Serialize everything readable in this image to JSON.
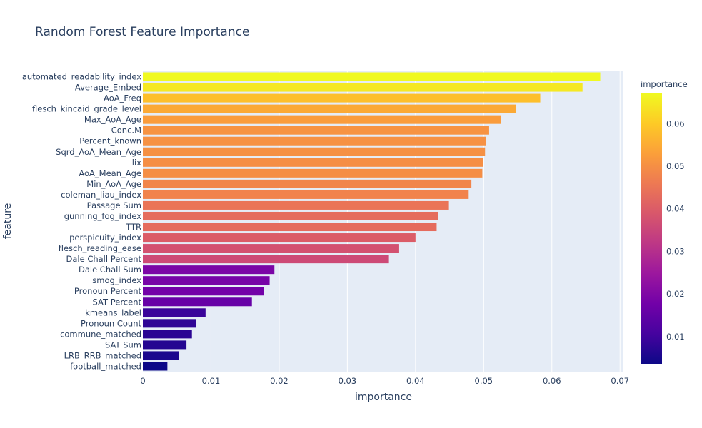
{
  "chart_data": {
    "type": "bar",
    "orientation": "horizontal",
    "title": "Random Forest Feature Importance",
    "xlabel": "importance",
    "ylabel": "feature",
    "xlim": [
      0,
      0.0705
    ],
    "x_ticks": [
      0,
      0.01,
      0.02,
      0.03,
      0.04,
      0.05,
      0.06,
      0.07
    ],
    "x_tick_labels": [
      "0",
      "0.01",
      "0.02",
      "0.03",
      "0.04",
      "0.05",
      "0.06",
      "0.07"
    ],
    "grid": true,
    "colorbar": {
      "title": "importance",
      "range": [
        0.0036,
        0.0671
      ],
      "ticks": [
        0.01,
        0.02,
        0.03,
        0.04,
        0.05,
        0.06
      ],
      "tick_labels": [
        "0.01",
        "0.02",
        "0.03",
        "0.04",
        "0.05",
        "0.06"
      ],
      "colorscale": [
        "#0d0887",
        "#46039f",
        "#7201a8",
        "#9c179e",
        "#bd3786",
        "#d8576b",
        "#ed7953",
        "#fb9f3a",
        "#fdca26",
        "#f0f921"
      ]
    },
    "categories": [
      "automated_readability_index",
      "Average_Embed",
      "AoA_Freq",
      "flesch_kincaid_grade_level",
      "Max_AoA_Age",
      "Conc.M",
      "Percent_known",
      "Sqrd_AoA_Mean_Age",
      "lix",
      "AoA_Mean_Age",
      "Min_AoA_Age",
      "coleman_liau_index",
      "Passage Sum",
      "gunning_fog_index",
      "TTR",
      "perspicuity_index",
      "flesch_reading_ease",
      "Dale Chall Percent",
      "Dale Chall Sum",
      "smog_index",
      "Pronoun Percent",
      "SAT Percent",
      "kmeans_label",
      "Pronoun Count",
      "commune_matched",
      "SAT Sum",
      "LRB_RRB_matched",
      "football_matched"
    ],
    "values": [
      0.0671,
      0.0645,
      0.0583,
      0.0547,
      0.0525,
      0.0508,
      0.0503,
      0.0502,
      0.0499,
      0.0498,
      0.0482,
      0.0478,
      0.0449,
      0.0433,
      0.0431,
      0.04,
      0.0376,
      0.0361,
      0.0193,
      0.0186,
      0.0178,
      0.016,
      0.0092,
      0.0078,
      0.0072,
      0.0064,
      0.0053,
      0.0036
    ]
  }
}
